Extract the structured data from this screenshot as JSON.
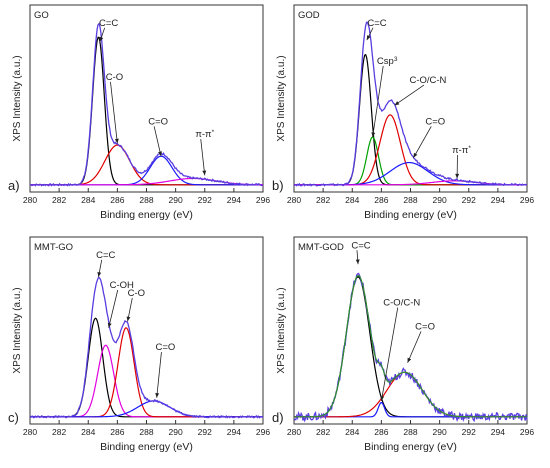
{
  "chart_data": [
    {
      "type": "line",
      "panel_tag": "GO",
      "panel_letter": "a)",
      "xlabel": "Binding energy (eV)",
      "ylabel": "XPS Intensity (a.u.)",
      "xlim": [
        280,
        296
      ],
      "ylim": [
        0,
        1
      ],
      "xticks": [
        280,
        282,
        284,
        286,
        288,
        290,
        292,
        294,
        296
      ],
      "peaks": [
        {
          "name": "C=C",
          "center": 284.7,
          "height": 0.93,
          "width": 0.4,
          "color": "#000000"
        },
        {
          "name": "C-O",
          "center": 286.0,
          "height": 0.25,
          "width": 0.85,
          "color": "#e00000"
        },
        {
          "name": "C=O",
          "center": 289.0,
          "height": 0.18,
          "width": 0.75,
          "color": "#1a1aff"
        },
        {
          "name": "π-π*",
          "center": 291.2,
          "height": 0.04,
          "width": 1.6,
          "color": "#e000e0"
        }
      ],
      "annotations": [
        {
          "text": "C=C",
          "x": 285.4,
          "y": 1.02,
          "arrow_to": [
            284.8,
            0.92
          ]
        },
        {
          "text": "C-O",
          "x": 285.8,
          "y": 0.68,
          "arrow_to": [
            286.0,
            0.28
          ]
        },
        {
          "text": "C=O",
          "x": 288.8,
          "y": 0.4,
          "arrow_to": [
            289.0,
            0.2
          ]
        },
        {
          "text": "π-π*",
          "x": 292.0,
          "y": 0.32,
          "arrow_to": [
            292.0,
            0.08
          ]
        }
      ]
    },
    {
      "type": "line",
      "panel_tag": "GOD",
      "panel_letter": "b)",
      "xlabel": "Binding energy (eV)",
      "ylabel": "XPS Intensity (a.u.)",
      "xlim": [
        280,
        296
      ],
      "ylim": [
        0,
        1
      ],
      "xticks": [
        280,
        282,
        284,
        286,
        288,
        290,
        292,
        294,
        296
      ],
      "peaks": [
        {
          "name": "C=C",
          "center": 284.9,
          "height": 0.82,
          "width": 0.4,
          "color": "#000000"
        },
        {
          "name": "Csp3",
          "center": 285.4,
          "height": 0.3,
          "width": 0.4,
          "color": "#00a000"
        },
        {
          "name": "C-O/C-N",
          "center": 286.6,
          "height": 0.44,
          "width": 0.7,
          "color": "#e00000"
        },
        {
          "name": "C=O",
          "center": 287.9,
          "height": 0.14,
          "width": 1.3,
          "color": "#1a1aff"
        },
        {
          "name": "π-π*",
          "center": 291.0,
          "height": 0.025,
          "width": 1.5,
          "color": "#e000e0"
        }
      ],
      "annotations": [
        {
          "text": "C=C",
          "x": 285.7,
          "y": 1.02,
          "arrow_to": [
            285.0,
            0.93
          ]
        },
        {
          "text": "Csp3",
          "x": 286.4,
          "y": 0.78,
          "arrow_to": [
            285.4,
            0.32
          ]
        },
        {
          "text": "C-O/C-N",
          "x": 289.2,
          "y": 0.66,
          "arrow_to": [
            286.9,
            0.52
          ]
        },
        {
          "text": "C=O",
          "x": 289.7,
          "y": 0.4,
          "arrow_to": [
            288.2,
            0.19
          ]
        },
        {
          "text": "π-π*",
          "x": 291.5,
          "y": 0.22,
          "arrow_to": [
            291.2,
            0.06
          ]
        }
      ]
    },
    {
      "type": "line",
      "panel_tag": "MMT-GO",
      "panel_letter": "c)",
      "xlabel": "Binding energy (eV)",
      "ylabel": "XPS Intensity (a.u.)",
      "xlim": [
        280,
        296
      ],
      "ylim": [
        0,
        1
      ],
      "xticks": [
        280,
        282,
        284,
        286,
        288,
        290,
        292,
        294,
        296
      ],
      "peaks": [
        {
          "name": "C=C",
          "center": 284.5,
          "height": 0.62,
          "width": 0.5,
          "color": "#000000"
        },
        {
          "name": "C-OH",
          "center": 285.2,
          "height": 0.45,
          "width": 0.55,
          "color": "#e000e0"
        },
        {
          "name": "C-O",
          "center": 286.6,
          "height": 0.56,
          "width": 0.55,
          "color": "#e00000"
        },
        {
          "name": "C=O",
          "center": 288.5,
          "height": 0.1,
          "width": 1.1,
          "color": "#1a1aff"
        }
      ],
      "annotations": [
        {
          "text": "C=C",
          "x": 285.2,
          "y": 1.02,
          "arrow_to": [
            284.7,
            0.9
          ]
        },
        {
          "text": "C-OH",
          "x": 286.3,
          "y": 0.83,
          "arrow_to": [
            285.4,
            0.58
          ]
        },
        {
          "text": "C-O",
          "x": 287.3,
          "y": 0.78,
          "arrow_to": [
            286.7,
            0.62
          ]
        },
        {
          "text": "C=O",
          "x": 289.3,
          "y": 0.44,
          "arrow_to": [
            288.7,
            0.14
          ]
        }
      ]
    },
    {
      "type": "line",
      "panel_tag": "MMT-GOD",
      "panel_letter": "d)",
      "xlabel": "Binding energy (eV)",
      "ylabel": "XPS Intensity (a.u.)",
      "xlim": [
        280,
        296
      ],
      "ylim": [
        0,
        1
      ],
      "xticks": [
        280,
        282,
        284,
        286,
        288,
        290,
        292,
        294,
        296
      ],
      "peaks": [
        {
          "name": "C=C",
          "center": 284.4,
          "height": 0.88,
          "width": 0.8,
          "color": "#000000"
        },
        {
          "name": "C-O/C-N",
          "center": 286.0,
          "height": 0.09,
          "width": 0.22,
          "color": "#1a1aff"
        },
        {
          "name": "C=O",
          "center": 287.6,
          "height": 0.28,
          "width": 1.2,
          "color": "#e00000"
        }
      ],
      "annotations": [
        {
          "text": "C=C",
          "x": 284.6,
          "y": 1.08,
          "arrow_to": [
            284.4,
            0.98
          ]
        },
        {
          "text": "C-O/C-N",
          "x": 287.4,
          "y": 0.72,
          "arrow_to": [
            286.0,
            0.12
          ]
        },
        {
          "text": "C=O",
          "x": 289.0,
          "y": 0.57,
          "arrow_to": [
            287.8,
            0.36
          ]
        }
      ]
    }
  ]
}
